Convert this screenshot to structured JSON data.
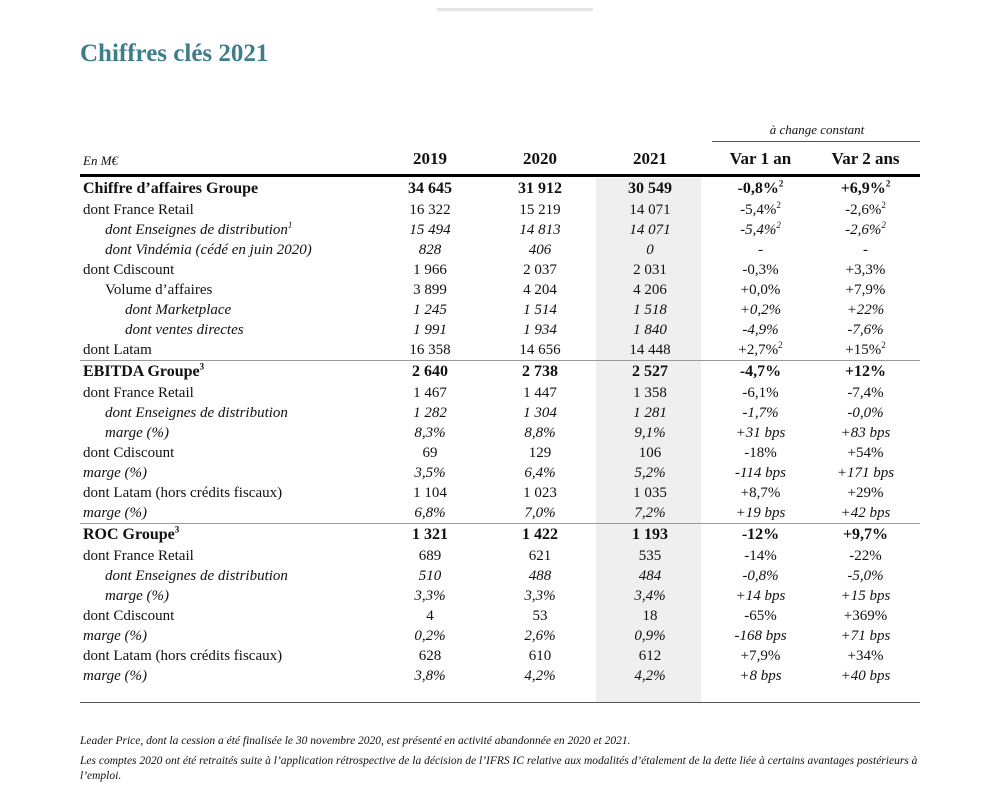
{
  "title": "Chiffres clés 2021",
  "header": {
    "unit": "En M€",
    "years": [
      "2019",
      "2020",
      "2021"
    ],
    "change_label": "à change constant",
    "var1": "Var 1 an",
    "var2": "Var 2 ans"
  },
  "rows": [
    {
      "label": "Chiffre d’affaires Groupe",
      "v2019": "34 645",
      "v2020": "31 912",
      "v2021": "30 549",
      "var1": "-0,8%",
      "var1_sup": "2",
      "var2": "+6,9%",
      "var2_sup": "2"
    },
    {
      "label": "dont France Retail",
      "v2019": "16 322",
      "v2020": "15 219",
      "v2021": "14 071",
      "var1": "-5,4%",
      "var1_sup": "2",
      "var2": "-2,6%",
      "var2_sup": "2"
    },
    {
      "label": "dont Enseignes de distribution",
      "label_sup": "1",
      "v2019": "15 494",
      "v2020": "14 813",
      "v2021": "14 071",
      "var1": "-5,4%",
      "var1_sup": "2",
      "var2": "-2,6%",
      "var2_sup": "2"
    },
    {
      "label": "dont Vindémia (cédé en juin 2020)",
      "v2019": "828",
      "v2020": "406",
      "v2021": "0",
      "var1": "-",
      "var2": "-"
    },
    {
      "label": "dont Cdiscount",
      "v2019": "1 966",
      "v2020": "2 037",
      "v2021": "2 031",
      "var1": "-0,3%",
      "var2": "+3,3%"
    },
    {
      "label": "Volume d’affaires",
      "v2019": "3 899",
      "v2020": "4 204",
      "v2021": "4 206",
      "var1": "+0,0%",
      "var2": "+7,9%"
    },
    {
      "label": "dont Marketplace",
      "v2019": "1 245",
      "v2020": "1 514",
      "v2021": "1 518",
      "var1": "+0,2%",
      "var2": "+22%"
    },
    {
      "label": "dont ventes directes",
      "v2019": "1 991",
      "v2020": "1 934",
      "v2021": "1 840",
      "var1": "-4,9%",
      "var2": "-7,6%"
    },
    {
      "label": "dont Latam",
      "v2019": "16 358",
      "v2020": "14 656",
      "v2021": "14 448",
      "var1": "+2,7%",
      "var1_sup": "2",
      "var2": "+15%",
      "var2_sup": "2"
    },
    {
      "label": "EBITDA Groupe",
      "label_sup": "3",
      "v2019": "2 640",
      "v2020": "2 738",
      "v2021": "2 527",
      "var1": "-4,7%",
      "var2": "+12%"
    },
    {
      "label": "dont France Retail",
      "v2019": "1 467",
      "v2020": "1 447",
      "v2021": "1 358",
      "var1": "-6,1%",
      "var2": "-7,4%"
    },
    {
      "label": "dont Enseignes de distribution",
      "v2019": "1 282",
      "v2020": "1 304",
      "v2021": "1 281",
      "var1": "-1,7%",
      "var2": "-0,0%"
    },
    {
      "label": "marge (%)",
      "v2019": "8,3%",
      "v2020": "8,8%",
      "v2021": "9,1%",
      "var1": "+31 bps",
      "var2": "+83 bps"
    },
    {
      "label": "dont Cdiscount",
      "v2019": "69",
      "v2020": "129",
      "v2021": "106",
      "var1": "-18%",
      "var2": "+54%"
    },
    {
      "label": "marge (%)",
      "v2019": "3,5%",
      "v2020": "6,4%",
      "v2021": "5,2%",
      "var1": "-114 bps",
      "var2": "+171 bps"
    },
    {
      "label": "dont Latam (hors crédits fiscaux)",
      "v2019": "1 104",
      "v2020": "1 023",
      "v2021": "1 035",
      "var1": "+8,7%",
      "var2": "+29%"
    },
    {
      "label": "marge (%)",
      "v2019": "6,8%",
      "v2020": "7,0%",
      "v2021": "7,2%",
      "var1": "+19 bps",
      "var2": "+42 bps"
    },
    {
      "label": "ROC Groupe",
      "label_sup": "3",
      "v2019": "1 321",
      "v2020": "1 422",
      "v2021": "1 193",
      "var1": "-12%",
      "var2": "+9,7%"
    },
    {
      "label": "dont France Retail",
      "v2019": "689",
      "v2020": "621",
      "v2021": "535",
      "var1": "-14%",
      "var2": "-22%"
    },
    {
      "label": "dont Enseignes de distribution",
      "v2019": "510",
      "v2020": "488",
      "v2021": "484",
      "var1": "-0,8%",
      "var2": "-5,0%"
    },
    {
      "label": "marge (%)",
      "v2019": "3,3%",
      "v2020": "3,3%",
      "v2021": "3,4%",
      "var1": "+14 bps",
      "var2": "+15 bps"
    },
    {
      "label": "dont Cdiscount",
      "v2019": "4",
      "v2020": "53",
      "v2021": "18",
      "var1": "-65%",
      "var2": "+369%"
    },
    {
      "label": "marge (%)",
      "v2019": "0,2%",
      "v2020": "2,6%",
      "v2021": "0,9%",
      "var1": "-168 bps",
      "var2": "+71 bps"
    },
    {
      "label": "dont Latam (hors crédits fiscaux)",
      "v2019": "628",
      "v2020": "610",
      "v2021": "612",
      "var1": "+7,9%",
      "var2": "+34%"
    },
    {
      "label": "marge (%)",
      "v2019": "3,8%",
      "v2020": "4,2%",
      "v2021": "4,2%",
      "var1": "+8 bps",
      "var2": "+40 bps"
    }
  ],
  "notes": [
    "Leader Price, dont la cession a été finalisée le 30 novembre 2020, est présenté en activité abandonnée en 2020 et 2021.",
    "Les comptes 2020 ont été retraités suite à l’application rétrospective de la décision de l’IFRS IC relative aux modalités d’étalement de la dette liée à certains avantages postérieurs à l’emploi."
  ]
}
